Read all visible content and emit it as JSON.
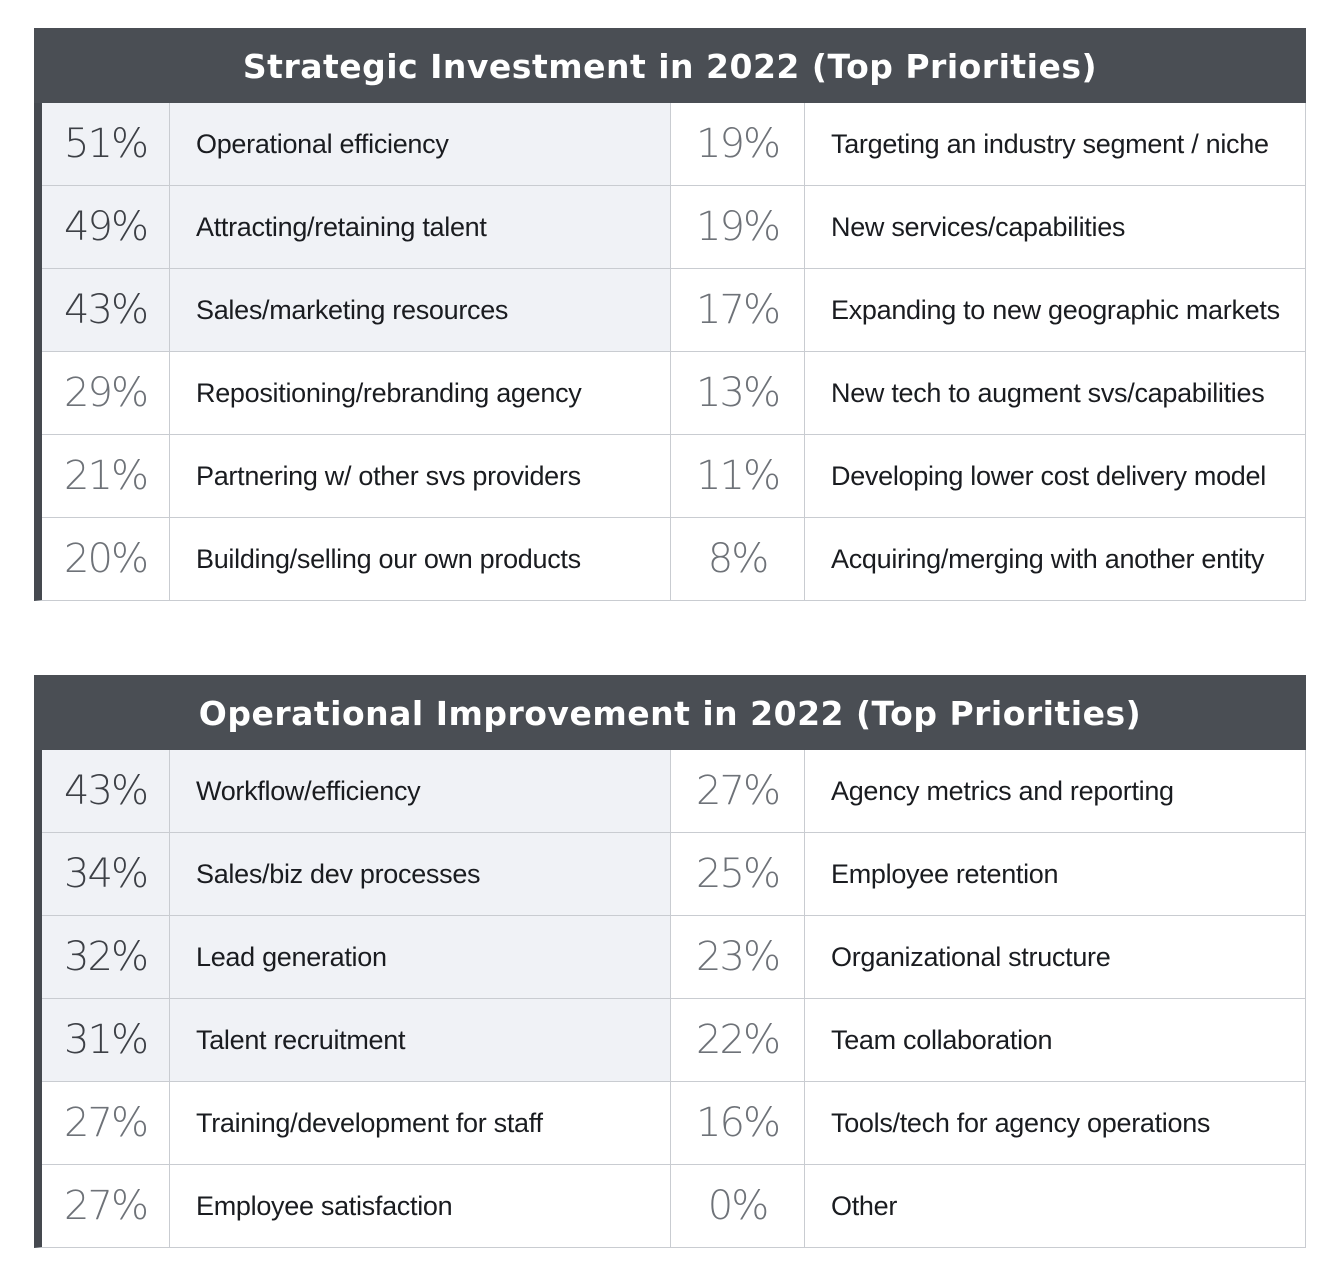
{
  "chart_data": [
    {
      "type": "table",
      "title": "Strategic Investment in 2022 (Top Priorities)",
      "columns": [
        [
          {
            "value": "51%",
            "label": "Operational efficiency"
          },
          {
            "value": "49%",
            "label": "Attracting/retaining talent"
          },
          {
            "value": "43%",
            "label": "Sales/marketing resources"
          },
          {
            "value": "29%",
            "label": "Repositioning/rebranding agency"
          },
          {
            "value": "21%",
            "label": "Partnering w/ other svs providers"
          },
          {
            "value": "20%",
            "label": "Building/selling our own products"
          }
        ],
        [
          {
            "value": "19%",
            "label": "Targeting an industry segment / niche"
          },
          {
            "value": "19%",
            "label": "New services/capabilities"
          },
          {
            "value": "17%",
            "label": "Expanding to new geographic markets"
          },
          {
            "value": "13%",
            "label": "New tech to augment svs/capabilities"
          },
          {
            "value": "11%",
            "label": "Developing lower cost delivery model"
          },
          {
            "value": "8%",
            "label": "Acquiring/merging with another entity"
          }
        ]
      ],
      "highlighted_rows": 3
    },
    {
      "type": "table",
      "title": "Operational Improvement in 2022 (Top Priorities)",
      "columns": [
        [
          {
            "value": "43%",
            "label": "Workflow/efficiency"
          },
          {
            "value": "34%",
            "label": "Sales/biz dev processes"
          },
          {
            "value": "32%",
            "label": "Lead generation"
          },
          {
            "value": "31%",
            "label": "Talent recruitment"
          },
          {
            "value": "27%",
            "label": "Training/development for staff"
          },
          {
            "value": "27%",
            "label": "Employee satisfaction"
          }
        ],
        [
          {
            "value": "27%",
            "label": "Agency metrics and reporting"
          },
          {
            "value": "25%",
            "label": "Employee retention"
          },
          {
            "value": "23%",
            "label": "Organizational structure"
          },
          {
            "value": "22%",
            "label": "Team collaboration"
          },
          {
            "value": "16%",
            "label": "Tools/tech for agency operations"
          },
          {
            "value": "0%",
            "label": "Other"
          }
        ]
      ],
      "highlighted_rows": 4
    }
  ],
  "colors": {
    "header_bg": "#4a4e54",
    "header_text": "#ffffff",
    "highlight_bg": "#f0f2f6",
    "accent_bar": "#45494f",
    "grid_line": "#c9ccd1"
  }
}
